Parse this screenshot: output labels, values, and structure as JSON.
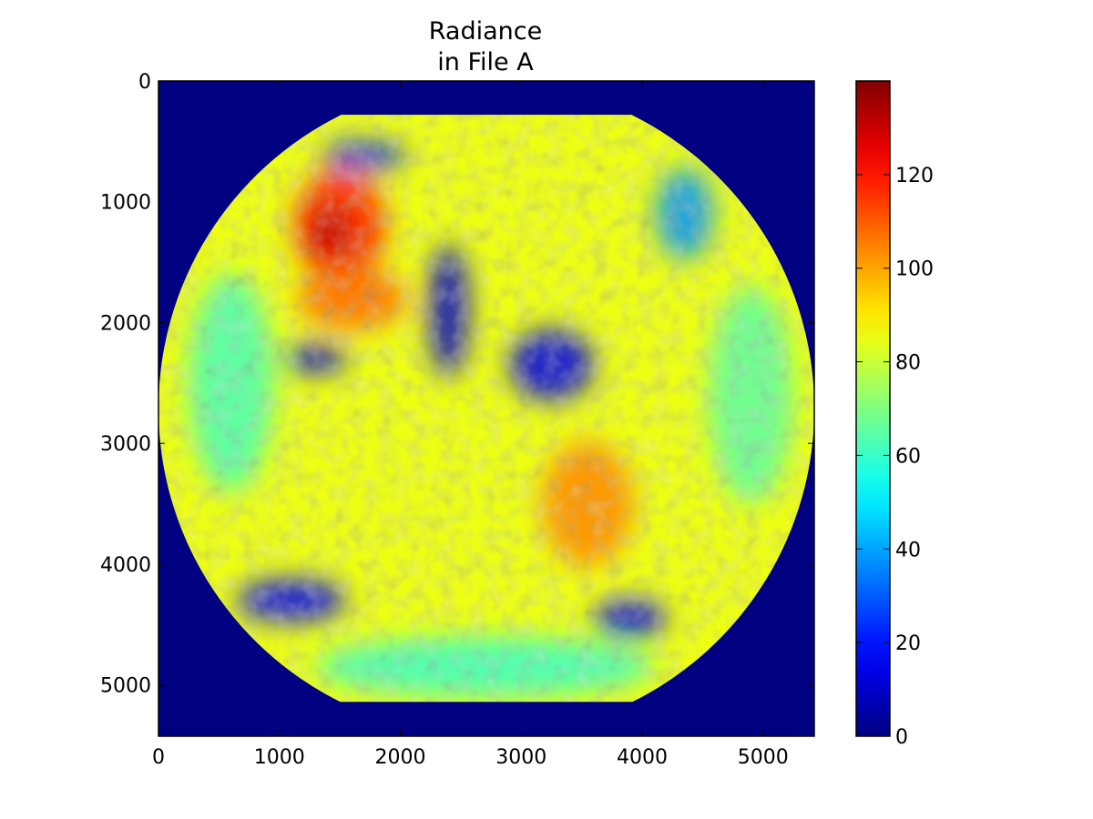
{
  "chart_data": {
    "type": "heatmap",
    "title": [
      "Radiance",
      "in File A"
    ],
    "xlabel": "",
    "ylabel": "",
    "xlim": [
      0,
      5424
    ],
    "ylim": [
      5424,
      0
    ],
    "x_ticks": [
      0,
      1000,
      2000,
      3000,
      4000,
      5000
    ],
    "x_tick_labels": [
      "0",
      "1000",
      "2000",
      "3000",
      "4000",
      "5000"
    ],
    "y_ticks": [
      0,
      1000,
      2000,
      3000,
      4000,
      5000
    ],
    "y_tick_labels": [
      "0",
      "1000",
      "2000",
      "3000",
      "4000",
      "5000"
    ],
    "grid": false,
    "colormap": "jet",
    "colorbar": {
      "vmin": 0,
      "vmax": 140,
      "ticks": [
        0,
        20,
        40,
        60,
        80,
        100,
        120
      ],
      "tick_labels": [
        "0",
        "20",
        "40",
        "60",
        "80",
        "100",
        "120"
      ]
    },
    "disk": {
      "center": [
        2712,
        2712
      ],
      "radius": 2712,
      "clip_top": 280,
      "clip_bottom": 5140,
      "background_value": 0,
      "mean_value": 85
    },
    "regions": [
      {
        "name": "warm-land-north",
        "value": 118,
        "x": 1500,
        "y": 1200,
        "rx": 380,
        "ry": 460
      },
      {
        "name": "warm-land-north-core",
        "value": 132,
        "x": 1420,
        "y": 1250,
        "rx": 150,
        "ry": 220
      },
      {
        "name": "warm-land-mid",
        "value": 108,
        "x": 1600,
        "y": 1800,
        "rx": 450,
        "ry": 260
      },
      {
        "name": "warm-land-south",
        "value": 104,
        "x": 3550,
        "y": 3500,
        "rx": 380,
        "ry": 520
      },
      {
        "name": "cloud-band-a",
        "value": 12,
        "x": 1300,
        "y": 2300,
        "rx": 260,
        "ry": 120
      },
      {
        "name": "cloud-band-b",
        "value": 10,
        "x": 2400,
        "y": 1900,
        "rx": 170,
        "ry": 550
      },
      {
        "name": "cloud-band-c",
        "value": 14,
        "x": 3250,
        "y": 2350,
        "rx": 350,
        "ry": 300
      },
      {
        "name": "cloud-south-a",
        "value": 16,
        "x": 1100,
        "y": 4300,
        "rx": 450,
        "ry": 180
      },
      {
        "name": "cloud-south-b",
        "value": 15,
        "x": 3900,
        "y": 4450,
        "rx": 300,
        "ry": 160
      },
      {
        "name": "cloud-north",
        "value": 22,
        "x": 1700,
        "y": 620,
        "rx": 350,
        "ry": 120
      },
      {
        "name": "cloud-northeast",
        "value": 38,
        "x": 4350,
        "y": 1100,
        "rx": 240,
        "ry": 380
      },
      {
        "name": "edge-cool-west",
        "value": 62,
        "x": 600,
        "y": 2500,
        "rx": 350,
        "ry": 900
      },
      {
        "name": "edge-cool-east",
        "value": 65,
        "x": 4900,
        "y": 2600,
        "rx": 350,
        "ry": 900
      },
      {
        "name": "south-cool-band",
        "value": 60,
        "x": 2700,
        "y": 4850,
        "rx": 1400,
        "ry": 250
      }
    ]
  }
}
